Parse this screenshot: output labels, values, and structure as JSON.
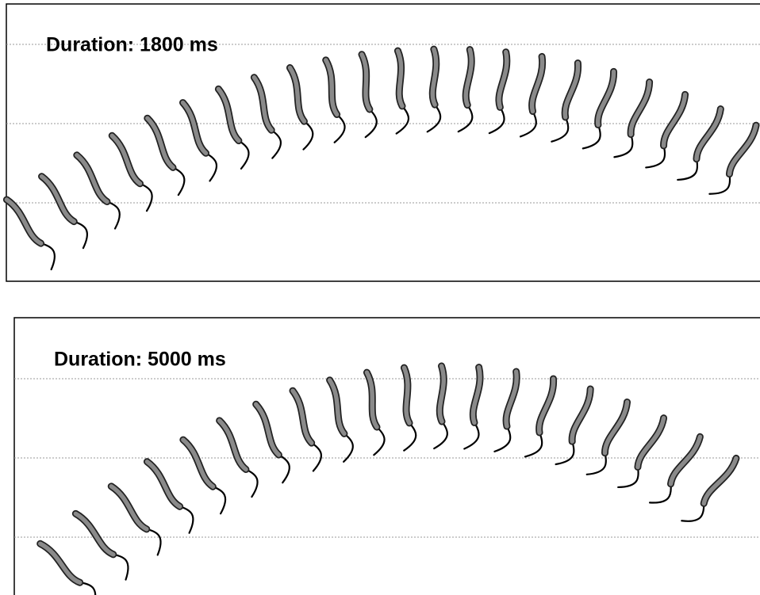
{
  "panels": [
    {
      "title": "Duration: 1800 ms"
    },
    {
      "title": "Duration: 5000 ms"
    }
  ]
}
